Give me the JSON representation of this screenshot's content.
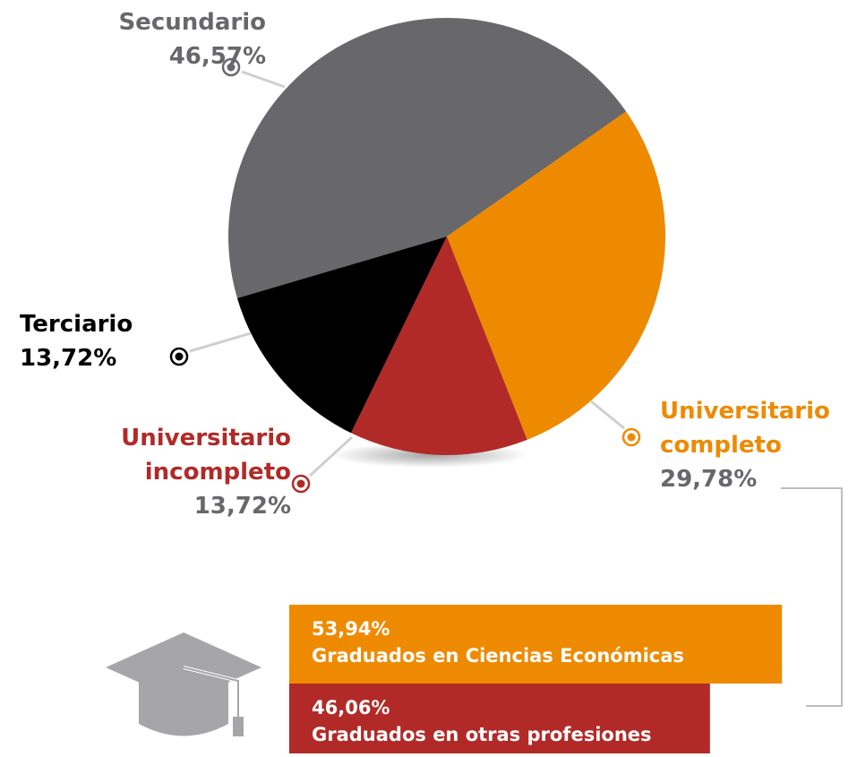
{
  "chart_data": [
    {
      "type": "pie",
      "categories": [
        "Secundario",
        "Universitario completo",
        "Universitario incompleto",
        "Terciario"
      ],
      "values": [
        46.57,
        29.78,
        13.72,
        13.72
      ],
      "value_labels": [
        "46,57%",
        "29,78%",
        "13,72%",
        "13,72%"
      ],
      "colors": [
        "#68676b",
        "#ee8a00",
        "#b12a27",
        "#000000"
      ]
    },
    {
      "type": "bar",
      "categories": [
        "Graduados en Ciencias Económicas",
        "Graduados en otras profesiones"
      ],
      "values": [
        53.94,
        46.06
      ],
      "value_labels": [
        "53,94%",
        "46,06%"
      ],
      "colors": [
        "#ee8a00",
        "#b12a27"
      ]
    }
  ]
}
